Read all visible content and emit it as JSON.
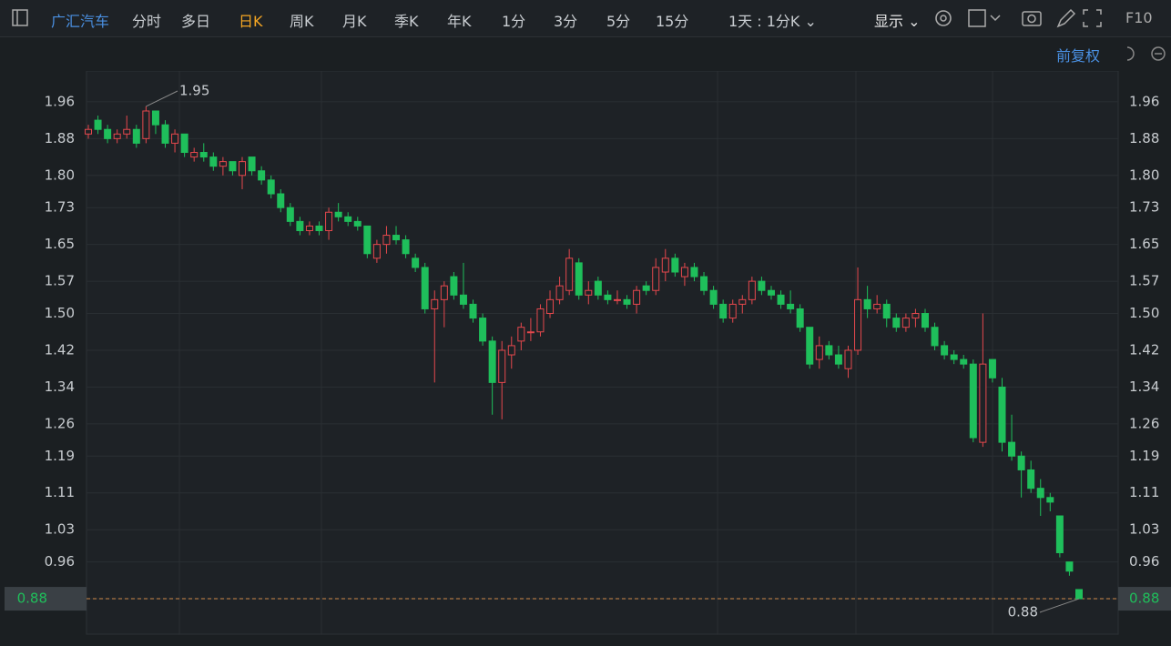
{
  "toolbar": {
    "stock": "广汇汽车",
    "tabs": [
      "分时",
      "多日",
      "日K",
      "周K",
      "月K",
      "季K",
      "年K",
      "1分",
      "3分",
      "5分",
      "15分"
    ],
    "active_tab": 2,
    "period": "1天 : 1分K",
    "display": "显示",
    "f10": "F10"
  },
  "adjust": "前复权",
  "chart_data": {
    "type": "candlestick",
    "ylim": [
      0.803,
      2.027
    ],
    "yticks": [
      1.96,
      1.88,
      {
        "value": 1.8,
        "label": "1.80"
      },
      1.73,
      1.65,
      1.57,
      {
        "value": 1.5,
        "label": "1.50"
      },
      1.42,
      1.34,
      1.26,
      1.19,
      1.11,
      1.03,
      0.96,
      0.88
    ],
    "grid": true,
    "up_color": "#e5484d",
    "down_color": "#1fbf5b",
    "series": {
      "open": [
        1.89,
        1.92,
        1.9,
        1.88,
        1.89,
        1.9,
        1.88,
        1.94,
        1.91,
        1.87,
        1.89,
        1.84,
        1.85,
        1.84,
        1.82,
        1.83,
        1.8,
        1.84,
        1.81,
        1.79,
        1.76,
        1.73,
        1.7,
        1.68,
        1.69,
        1.68,
        1.72,
        1.71,
        1.7,
        1.69,
        1.62,
        1.65,
        1.67,
        1.66,
        1.62,
        1.6,
        1.51,
        1.53,
        1.58,
        1.54,
        1.52,
        1.49,
        1.44,
        1.35,
        1.41,
        1.44,
        1.46,
        1.46,
        1.5,
        1.53,
        1.55,
        1.61,
        1.54,
        1.57,
        1.54,
        1.53,
        1.53,
        1.52,
        1.56,
        1.55,
        1.59,
        1.62,
        1.58,
        1.6,
        1.58,
        1.55,
        1.52,
        1.49,
        1.52,
        1.53,
        1.57,
        1.55,
        1.54,
        1.52,
        1.51,
        1.47,
        1.4,
        1.43,
        1.41,
        1.38,
        1.42,
        1.53,
        1.51,
        1.52,
        1.49,
        1.47,
        1.49,
        1.5,
        1.47,
        1.43,
        1.41,
        1.4,
        1.39,
        1.22,
        1.4,
        1.34,
        1.22,
        1.19,
        1.16,
        1.12,
        1.1,
        1.06,
        0.96,
        0.9
      ],
      "high": [
        1.91,
        1.93,
        1.91,
        1.9,
        1.93,
        1.91,
        1.95,
        1.94,
        1.92,
        1.9,
        1.89,
        1.86,
        1.87,
        1.85,
        1.84,
        1.83,
        1.84,
        1.84,
        1.82,
        1.8,
        1.77,
        1.74,
        1.71,
        1.7,
        1.7,
        1.73,
        1.74,
        1.72,
        1.71,
        1.69,
        1.66,
        1.69,
        1.69,
        1.67,
        1.63,
        1.61,
        1.55,
        1.57,
        1.59,
        1.61,
        1.53,
        1.5,
        1.45,
        1.44,
        1.45,
        1.48,
        1.49,
        1.52,
        1.55,
        1.58,
        1.64,
        1.62,
        1.57,
        1.58,
        1.55,
        1.55,
        1.54,
        1.56,
        1.57,
        1.62,
        1.64,
        1.63,
        1.61,
        1.61,
        1.59,
        1.56,
        1.53,
        1.53,
        1.54,
        1.58,
        1.58,
        1.56,
        1.55,
        1.55,
        1.52,
        1.47,
        1.45,
        1.44,
        1.43,
        1.43,
        1.6,
        1.56,
        1.54,
        1.53,
        1.5,
        1.5,
        1.51,
        1.51,
        1.48,
        1.44,
        1.42,
        1.41,
        1.4,
        1.5,
        1.4,
        1.36,
        1.28,
        1.2,
        1.18,
        1.14,
        1.11,
        1.06,
        0.96,
        0.9
      ],
      "low": [
        1.88,
        1.89,
        1.87,
        1.87,
        1.88,
        1.86,
        1.87,
        1.89,
        1.86,
        1.85,
        1.84,
        1.83,
        1.83,
        1.81,
        1.8,
        1.8,
        1.77,
        1.8,
        1.78,
        1.75,
        1.72,
        1.69,
        1.67,
        1.67,
        1.67,
        1.66,
        1.7,
        1.69,
        1.68,
        1.62,
        1.61,
        1.63,
        1.65,
        1.62,
        1.59,
        1.5,
        1.35,
        1.47,
        1.53,
        1.51,
        1.48,
        1.43,
        1.28,
        1.27,
        1.38,
        1.42,
        1.44,
        1.45,
        1.49,
        1.52,
        1.54,
        1.53,
        1.52,
        1.53,
        1.52,
        1.52,
        1.51,
        1.5,
        1.54,
        1.54,
        1.57,
        1.58,
        1.56,
        1.57,
        1.54,
        1.51,
        1.48,
        1.48,
        1.5,
        1.52,
        1.54,
        1.53,
        1.51,
        1.5,
        1.46,
        1.38,
        1.38,
        1.4,
        1.38,
        1.36,
        1.41,
        1.49,
        1.5,
        1.47,
        1.46,
        1.46,
        1.47,
        1.46,
        1.42,
        1.4,
        1.39,
        1.38,
        1.22,
        1.21,
        1.35,
        1.2,
        1.18,
        1.1,
        1.11,
        1.06,
        1.07,
        0.97,
        0.93,
        0.88
      ],
      "close": [
        1.9,
        1.9,
        1.88,
        1.89,
        1.9,
        1.87,
        1.94,
        1.91,
        1.87,
        1.89,
        1.85,
        1.85,
        1.84,
        1.82,
        1.83,
        1.81,
        1.83,
        1.81,
        1.79,
        1.76,
        1.73,
        1.7,
        1.68,
        1.69,
        1.68,
        1.72,
        1.71,
        1.7,
        1.69,
        1.63,
        1.65,
        1.67,
        1.66,
        1.63,
        1.6,
        1.51,
        1.53,
        1.56,
        1.54,
        1.52,
        1.49,
        1.44,
        1.35,
        1.42,
        1.43,
        1.47,
        1.46,
        1.51,
        1.53,
        1.56,
        1.62,
        1.54,
        1.55,
        1.54,
        1.53,
        1.53,
        1.52,
        1.55,
        1.55,
        1.6,
        1.62,
        1.59,
        1.6,
        1.58,
        1.55,
        1.52,
        1.49,
        1.52,
        1.53,
        1.57,
        1.55,
        1.54,
        1.52,
        1.51,
        1.47,
        1.39,
        1.43,
        1.41,
        1.39,
        1.42,
        1.53,
        1.51,
        1.52,
        1.49,
        1.47,
        1.49,
        1.5,
        1.47,
        1.43,
        1.41,
        1.4,
        1.39,
        1.23,
        1.39,
        1.36,
        1.22,
        1.19,
        1.16,
        1.12,
        1.1,
        1.09,
        0.98,
        0.94,
        0.88
      ]
    },
    "high_label": 1.95,
    "low_label": 0.88,
    "last_price": 0.88
  }
}
